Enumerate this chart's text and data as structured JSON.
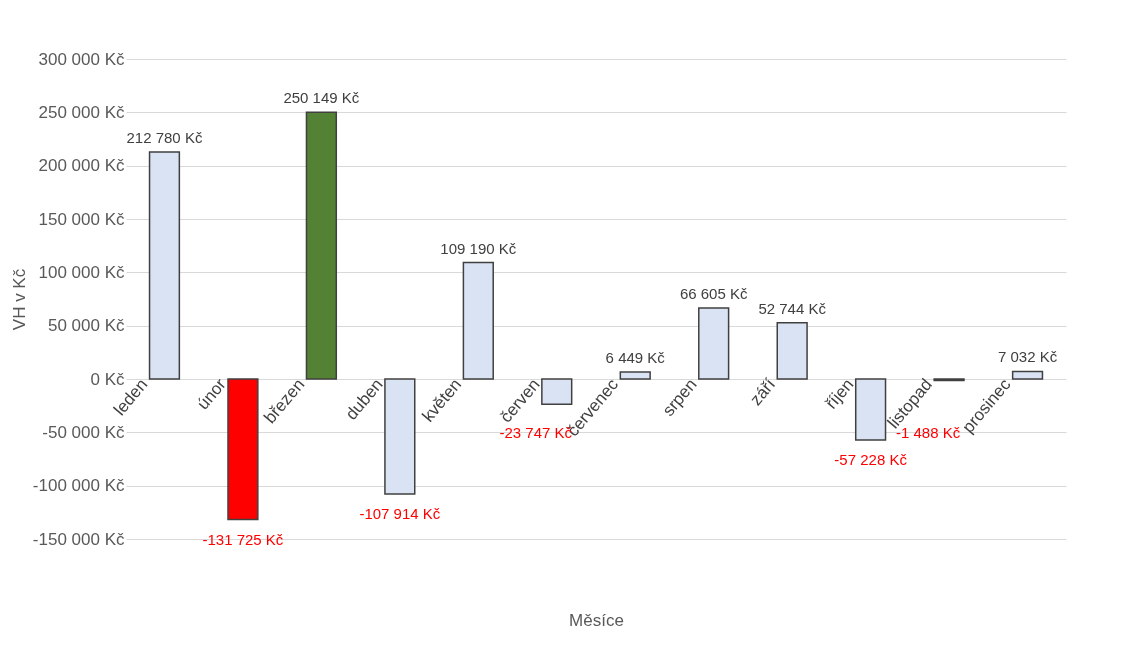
{
  "chart_data": {
    "type": "bar",
    "xlabel": "Měsíce",
    "ylabel": "VH v Kč",
    "categories": [
      "leden",
      "únor",
      "březen",
      "duben",
      "květen",
      "červen",
      "červenec",
      "srpen",
      "září",
      "říjen",
      "listopad",
      "prosinec"
    ],
    "values": [
      212780,
      -131725,
      250149,
      -107914,
      109190,
      -23747,
      6449,
      66605,
      52744,
      -57228,
      -1488,
      7032
    ],
    "colors": [
      "#dae3f3",
      "#ff0000",
      "#548235",
      "#dae3f3",
      "#dae3f3",
      "#dae3f3",
      "#dae3f3",
      "#dae3f3",
      "#dae3f3",
      "#dae3f3",
      "#dae3f3",
      "#dae3f3"
    ],
    "value_labels": [
      "212 780 Kč",
      "-131 725 Kč",
      "250 149 Kč",
      "-107 914 Kč",
      "109 190 Kč",
      "-23 747 Kč",
      "6 449 Kč",
      "66 605 Kč",
      "52 744 Kč",
      "-57 228 Kč",
      "-1 488 Kč",
      "7 032 Kč"
    ],
    "ylim": [
      -150000,
      300000
    ],
    "yticks": [
      {
        "value": -150000,
        "label": "-150 000 Kč"
      },
      {
        "value": -100000,
        "label": "-100 000 Kč"
      },
      {
        "value": -50000,
        "label": "-50 000 Kč"
      },
      {
        "value": 0,
        "label": "0 Kč"
      },
      {
        "value": 50000,
        "label": "50 000 Kč"
      },
      {
        "value": 100000,
        "label": "100 000 Kč"
      },
      {
        "value": 150000,
        "label": "150 000 Kč"
      },
      {
        "value": 200000,
        "label": "200 000 Kč"
      },
      {
        "value": 250000,
        "label": "250 000 Kč"
      },
      {
        "value": 300000,
        "label": "300 000 Kč"
      }
    ],
    "grid": "y"
  }
}
